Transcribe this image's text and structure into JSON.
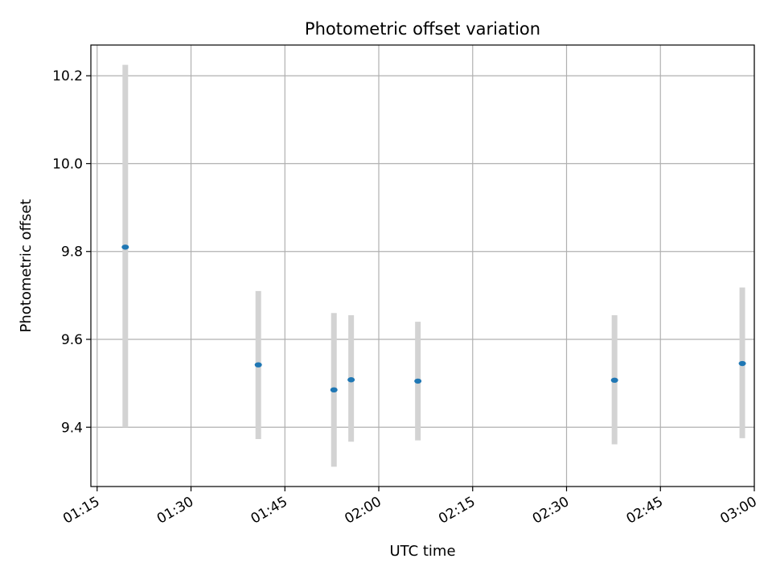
{
  "chart_data": {
    "type": "scatter",
    "title": "Photometric offset variation",
    "xlabel": "UTC time",
    "ylabel": "Photometric offset",
    "xlim": [
      "01:14",
      "03:00"
    ],
    "ylim": [
      9.265,
      10.27
    ],
    "grid": true,
    "x_ticks": [
      "01:15",
      "01:30",
      "01:45",
      "02:00",
      "02:15",
      "02:30",
      "02:45",
      "03:00"
    ],
    "y_ticks": [
      "9.4",
      "9.6",
      "9.8",
      "10.0",
      "10.2"
    ],
    "points": [
      {
        "x": "01:19:30",
        "y": 9.81,
        "err_low": 9.4,
        "err_high": 10.225
      },
      {
        "x": "01:40:45",
        "y": 9.542,
        "err_low": 9.373,
        "err_high": 9.71
      },
      {
        "x": "01:52:50",
        "y": 9.485,
        "err_low": 9.31,
        "err_high": 9.66
      },
      {
        "x": "01:55:35",
        "y": 9.508,
        "err_low": 9.367,
        "err_high": 9.655
      },
      {
        "x": "02:06:15",
        "y": 9.505,
        "err_low": 9.37,
        "err_high": 9.64
      },
      {
        "x": "02:37:40",
        "y": 9.507,
        "err_low": 9.361,
        "err_high": 9.655
      },
      {
        "x": "02:58:05",
        "y": 9.545,
        "err_low": 9.375,
        "err_high": 9.718
      }
    ],
    "colors": {
      "marker": "#1f77b4",
      "errorbar": "#d3d3d3",
      "grid": "#b0b0b0",
      "axes": "#000000"
    }
  }
}
